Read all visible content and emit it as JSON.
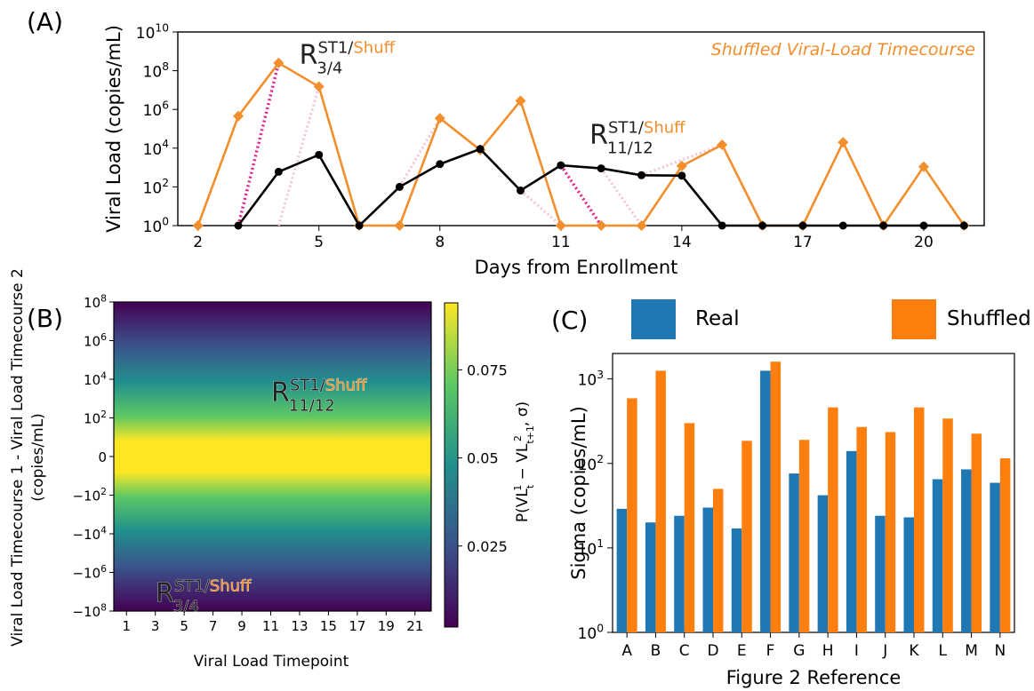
{
  "panel_labels": {
    "a": "(A)",
    "b": "(B)",
    "c": "(C)"
  },
  "colors": {
    "real": "#000000",
    "shuffled": "#f28e2b",
    "magenta": "#e0218a",
    "pink": "#f4c2d8",
    "bar_real": "#1f77b4",
    "bar_shuffled": "#ff7f0e",
    "viridis": [
      "#440154",
      "#3b528b",
      "#21908d",
      "#5dc863",
      "#fde725"
    ]
  },
  "chart_data": [
    {
      "type": "line",
      "annotation": "Shuffled Viral-Load Timecourse",
      "xlabel": "Days from Enrollment",
      "ylabel": "Viral Load (copies/mL)",
      "xlim": [
        1.5,
        21.5
      ],
      "xticks": [
        2,
        5,
        8,
        11,
        14,
        17,
        20
      ],
      "yscale": "log",
      "ylim": [
        1,
        10000000000
      ],
      "yticks": [
        1,
        100,
        10000,
        1000000,
        100000000,
        10000000000
      ],
      "yticklabels": [
        {
          "base": "10",
          "exp": "0"
        },
        {
          "base": "10",
          "exp": "2"
        },
        {
          "base": "10",
          "exp": "4"
        },
        {
          "base": "10",
          "exp": "6"
        },
        {
          "base": "10",
          "exp": "8"
        },
        {
          "base": "10",
          "exp": "10"
        }
      ],
      "series": [
        {
          "key": "shuffled",
          "marker": "diamond",
          "x": [
            2,
            3,
            4,
            5,
            6,
            7,
            8,
            9,
            10,
            11,
            12,
            13,
            14,
            15,
            16,
            17,
            18,
            19,
            20,
            21
          ],
          "y": [
            1,
            450000,
            250000000,
            15000000,
            1,
            1,
            350000,
            8000,
            2800000,
            1,
            1,
            1,
            1200,
            15000,
            1,
            1,
            20000,
            1,
            1100,
            1
          ]
        },
        {
          "key": "real",
          "marker": "circle",
          "x": [
            3,
            4,
            5,
            6,
            7,
            8,
            9,
            10,
            11,
            12,
            13,
            14,
            15,
            16,
            17,
            18,
            19,
            20,
            21
          ],
          "y": [
            1,
            600,
            4500,
            1,
            100,
            1500,
            9000,
            65,
            1300,
            900,
            400,
            380,
            1,
            1,
            1,
            1,
            1,
            1,
            1
          ]
        }
      ],
      "segments": [
        {
          "style": "magenta",
          "from": [
            3,
            1
          ],
          "to": [
            4,
            250000000
          ]
        },
        {
          "style": "pink",
          "from": [
            4,
            1
          ],
          "to": [
            5,
            15000000
          ]
        },
        {
          "style": "magenta",
          "from": [
            11,
            1300
          ],
          "to": [
            12,
            1
          ]
        },
        {
          "style": "pink",
          "from": [
            7,
            100
          ],
          "to": [
            8,
            350000
          ]
        },
        {
          "style": "pink",
          "from": [
            10,
            65
          ],
          "to": [
            11,
            1
          ]
        },
        {
          "style": "pink",
          "from": [
            12,
            900
          ],
          "to": [
            13,
            1
          ]
        },
        {
          "style": "pink",
          "from": [
            13,
            400
          ],
          "to": [
            15,
            15000
          ]
        }
      ],
      "callouts": [
        {
          "main": "R",
          "sup_black": "ST1/",
          "sup_orange": "Shuff",
          "sub": "3/4",
          "at": [
            4.6,
            200000000
          ]
        },
        {
          "main": "R",
          "sup_black": "ST1/",
          "sup_orange": "Shuff",
          "sub": "11/12",
          "at": [
            11.8,
            2000
          ]
        }
      ]
    },
    {
      "type": "heatmap",
      "xlabel": "Viral Load Timepoint",
      "ylabel_line1": "Viral Load Timecourse 1 - Viral Load Timecourse 2",
      "ylabel_line2": "(copies/mL)",
      "xticks": [
        "1",
        "3",
        "5",
        "7",
        "9",
        "11",
        "13",
        "15",
        "17",
        "19",
        "21"
      ],
      "yticklabels": [
        {
          "base": "10",
          "exp": "8"
        },
        {
          "base": "10",
          "exp": "6"
        },
        {
          "base": "10",
          "exp": "4"
        },
        {
          "base": "10",
          "exp": "2"
        },
        {
          "plain": "0"
        },
        {
          "base": "−10",
          "exp": "2"
        },
        {
          "base": "−10",
          "exp": "4"
        },
        {
          "base": "−10",
          "exp": "6"
        },
        {
          "base": "−10",
          "exp": "8"
        }
      ],
      "colorbar": {
        "ticks": [
          "0.075",
          "0.05",
          "0.025"
        ],
        "tick_values": [
          0.075,
          0.05,
          0.025
        ],
        "range": [
          0.002,
          0.094
        ],
        "label": "P(VL",
        "label_parts": {
          "a": "P(VL",
          "t1": "t",
          "s1": "1",
          "mid": " − VL",
          "t2": "t+1",
          "s2": "2",
          "end": ", σ)"
        }
      },
      "callouts": [
        {
          "main": "R",
          "sup_black": "ST1/",
          "sup_orange": "Shuff",
          "sub": "11/12"
        },
        {
          "main": "R",
          "sup_black": "ST1/",
          "sup_orange": "Shuff",
          "sub": "3/4"
        }
      ]
    },
    {
      "type": "bar",
      "xlabel": "Figure 2 Reference",
      "ylabel": "Sigma (copies/mL)",
      "yscale": "log",
      "ylim": [
        1,
        2000
      ],
      "yticks": [
        1,
        10,
        100,
        1000
      ],
      "yticklabels": [
        {
          "base": "10",
          "exp": "0"
        },
        {
          "base": "10",
          "exp": "1"
        },
        {
          "base": "10",
          "exp": "2"
        },
        {
          "base": "10",
          "exp": "3"
        }
      ],
      "categories": [
        "A",
        "B",
        "C",
        "D",
        "E",
        "F",
        "G",
        "H",
        "I",
        "J",
        "K",
        "L",
        "M",
        "N"
      ],
      "series": [
        {
          "name": "Real",
          "values": [
            29,
            20,
            24,
            30,
            17,
            1250,
            76,
            42,
            140,
            24,
            23,
            65,
            85,
            59
          ]
        },
        {
          "name": "Shuffled",
          "values": [
            590,
            1250,
            300,
            50,
            185,
            1600,
            190,
            460,
            270,
            235,
            460,
            340,
            225,
            115
          ]
        }
      ],
      "legend_position": "top"
    }
  ]
}
